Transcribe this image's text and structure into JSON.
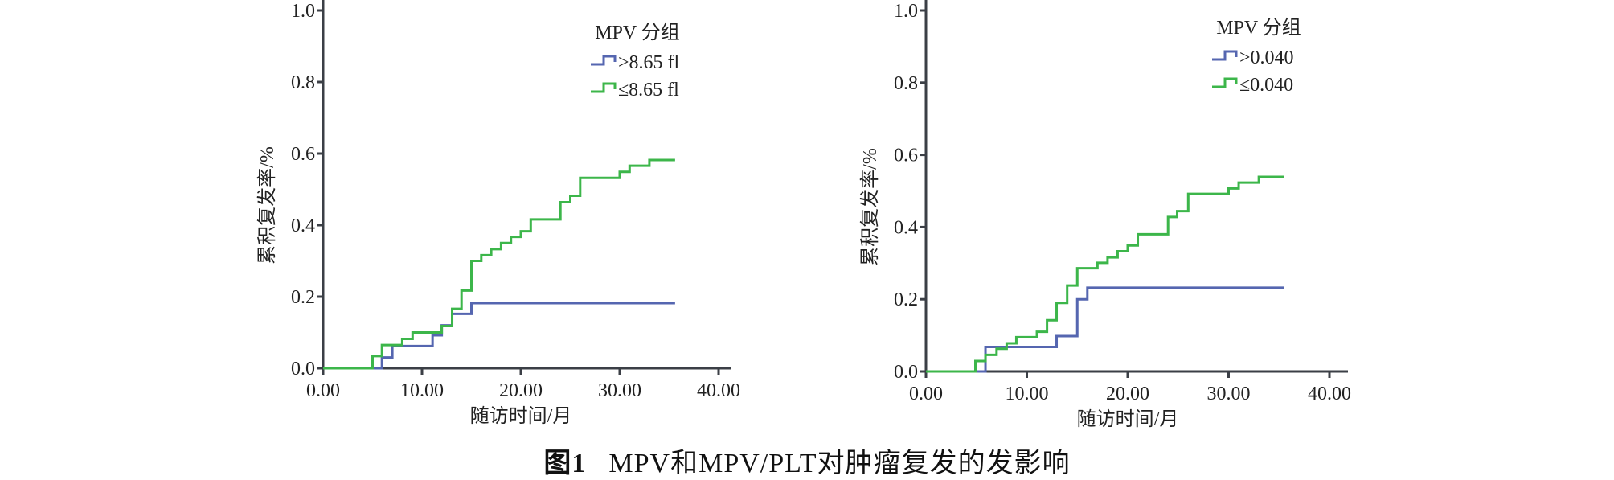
{
  "chart_data": [
    {
      "type": "line",
      "subtype": "step",
      "xlabel": "随访时间/月",
      "ylabel": "累积复发率/%",
      "xlim": [
        0,
        42
      ],
      "ylim": [
        0,
        1.0
      ],
      "xticks": [
        "0.00",
        "10.00",
        "20.00",
        "30.00",
        "40.00"
      ],
      "xtick_values": [
        0,
        10,
        20,
        30,
        40
      ],
      "yticks": [
        "0.0",
        "0.2",
        "0.4",
        "0.6",
        "0.8",
        "1.0"
      ],
      "ytick_values": [
        0,
        0.2,
        0.4,
        0.6,
        0.8,
        1.0
      ],
      "grid": false,
      "legend_title": "MPV 分组",
      "legend_position": "top-right",
      "series": [
        {
          "name": ">8.65 fl",
          "color": "#5566b0",
          "x": [
            0,
            5.95,
            7.0,
            11.07,
            12.0,
            13.05,
            15.0,
            35.6
          ],
          "y": [
            0,
            0.03,
            0.062,
            0.092,
            0.12,
            0.152,
            0.182,
            0.182
          ]
        },
        {
          "name": "≤8.65 fl",
          "color": "#3cb64a",
          "x": [
            0,
            5.0,
            5.95,
            8.0,
            9.05,
            12.0,
            13.05,
            14.0,
            15.0,
            16.0,
            17.0,
            18.0,
            19.0,
            20.0,
            21.0,
            24.0,
            25.0,
            26.0,
            30.0,
            31.0,
            33.0,
            35.6
          ],
          "y": [
            0,
            0.034,
            0.065,
            0.082,
            0.1,
            0.118,
            0.166,
            0.217,
            0.3,
            0.316,
            0.333,
            0.35,
            0.367,
            0.383,
            0.416,
            0.464,
            0.482,
            0.532,
            0.549,
            0.566,
            0.582,
            0.582
          ]
        }
      ]
    },
    {
      "type": "line",
      "subtype": "step",
      "xlabel": "随访时间/月",
      "ylabel": "累积复发率/%",
      "xlim": [
        0,
        42
      ],
      "ylim": [
        0,
        1.0
      ],
      "xticks": [
        "0.00",
        "10.00",
        "20.00",
        "30.00",
        "40.00"
      ],
      "xtick_values": [
        0,
        10,
        20,
        30,
        40
      ],
      "yticks": [
        "0.0",
        "0.2",
        "0.4",
        "0.6",
        "0.8",
        "1.0"
      ],
      "ytick_values": [
        0,
        0.2,
        0.4,
        0.6,
        0.8,
        1.0
      ],
      "grid": false,
      "legend_title": "MPV 分组",
      "legend_position": "top-right",
      "series": [
        {
          "name": ">0.040",
          "color": "#5566b0",
          "x": [
            0,
            5.9,
            12.95,
            15.0,
            16.0,
            35.5
          ],
          "y": [
            0,
            0.068,
            0.098,
            0.2,
            0.232,
            0.232
          ]
        },
        {
          "name": "≤0.040",
          "color": "#3cb64a",
          "x": [
            0,
            4.9,
            5.9,
            7.0,
            8.0,
            8.96,
            11.0,
            12.0,
            12.95,
            14.0,
            15.0,
            17.0,
            18.0,
            19.0,
            20.0,
            21.0,
            24.0,
            24.9,
            26.0,
            30.0,
            31.0,
            33.0,
            35.5
          ],
          "y": [
            0,
            0.029,
            0.046,
            0.063,
            0.078,
            0.095,
            0.11,
            0.142,
            0.19,
            0.238,
            0.286,
            0.301,
            0.316,
            0.333,
            0.349,
            0.38,
            0.428,
            0.444,
            0.492,
            0.507,
            0.523,
            0.539,
            0.539
          ]
        }
      ]
    }
  ],
  "caption": {
    "figure_number": "图1",
    "text": "MPV和MPV/PLT对肿瘤复发的发影响"
  }
}
